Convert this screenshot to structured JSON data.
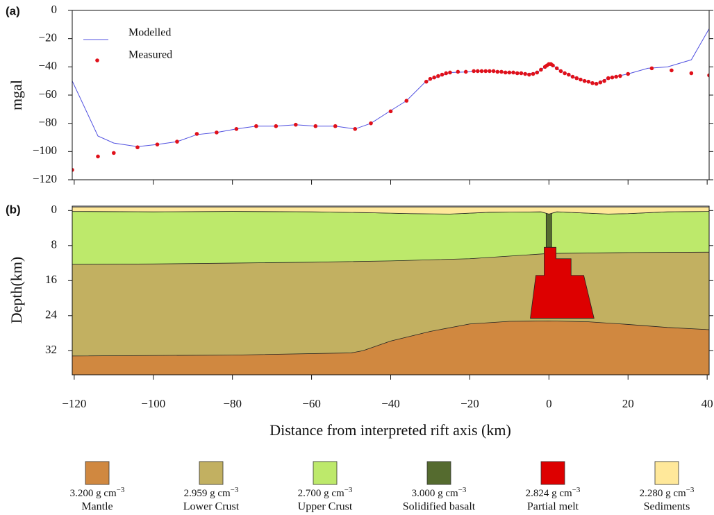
{
  "chart_data": [
    {
      "type": "line",
      "panel_label": "(a)",
      "y_label": "mgal",
      "xlim": [
        -120.5,
        40.5
      ],
      "ylim": [
        -120,
        0
      ],
      "yticks": [
        {
          "value": -120,
          "label": "−120"
        },
        {
          "value": -100,
          "label": "−100"
        },
        {
          "value": -80,
          "label": "−80"
        },
        {
          "value": -60,
          "label": "−60"
        },
        {
          "value": -40,
          "label": "−40"
        },
        {
          "value": -20,
          "label": "−20"
        },
        0
      ],
      "xticks": [
        -120,
        -100,
        -80,
        -60,
        -40,
        -20,
        0,
        20,
        40
      ],
      "series": [
        {
          "name": "Modelled",
          "kind": "line",
          "color": "#5050e0",
          "x": [
            -120.5,
            -114,
            -110,
            -104,
            -99,
            -94,
            -89,
            -84,
            -79,
            -74,
            -69,
            -64,
            -59,
            -54,
            -49,
            -45,
            -40,
            -36,
            -31,
            -28,
            -25,
            -20,
            -15,
            -10,
            -6,
            -3,
            -1,
            0,
            1,
            3,
            6,
            9,
            12,
            15,
            20,
            25,
            30,
            36,
            40.5
          ],
          "values": [
            -50,
            -89,
            -94,
            -96.5,
            -95,
            -93,
            -88,
            -86.5,
            -84,
            -82,
            -82,
            -81,
            -82,
            -82,
            -84,
            -80,
            -71,
            -64,
            -50,
            -47,
            -44,
            -43.5,
            -43,
            -44,
            -45,
            -44,
            -40,
            -38,
            -39,
            -43,
            -47,
            -50,
            -52,
            -48,
            -45,
            -41,
            -40,
            -35,
            -13
          ]
        },
        {
          "name": "Measured",
          "kind": "scatter",
          "color": "#e0101a",
          "x": [
            -120.5,
            -114,
            -110,
            -104,
            -99,
            -94,
            -89,
            -84,
            -79,
            -74,
            -69,
            -64,
            -59,
            -54,
            -49,
            -45,
            -40,
            -36,
            -31,
            -30,
            -29,
            -28,
            -27,
            -26,
            -25,
            -23,
            -21,
            -19,
            -18,
            -17,
            -16,
            -15,
            -14,
            -13,
            -12,
            -11,
            -10,
            -9,
            -8,
            -7,
            -6,
            -5,
            -4,
            -3,
            -2,
            -1,
            -0.5,
            0,
            0.5,
            1,
            2,
            3,
            4,
            5,
            6,
            7,
            8,
            9,
            10,
            11,
            12,
            13,
            14,
            15,
            16,
            17,
            18,
            20,
            26,
            31,
            36,
            40.5
          ],
          "values": [
            -113,
            -103.5,
            -101,
            -97,
            -95,
            -93,
            -87.5,
            -86.5,
            -84,
            -82,
            -82,
            -81,
            -82,
            -82,
            -84,
            -80,
            -71.5,
            -64,
            -50.5,
            -48.5,
            -47.5,
            -46.5,
            -45.5,
            -44.5,
            -44,
            -43.5,
            -43.5,
            -43,
            -43,
            -43,
            -43,
            -43,
            -43,
            -43.5,
            -43.5,
            -44,
            -44,
            -44,
            -44.5,
            -44.5,
            -45,
            -45.5,
            -45,
            -44,
            -42,
            -40,
            -39,
            -38,
            -38,
            -39,
            -41,
            -43,
            -44.5,
            -45.5,
            -47,
            -48,
            -49,
            -50,
            -50.5,
            -51.5,
            -52,
            -51,
            -50,
            -48,
            -47.5,
            -47,
            -46.5,
            -45,
            -41,
            -42.5,
            -44.5,
            -46
          ]
        }
      ]
    },
    {
      "type": "section",
      "panel_label": "(b)",
      "y_label": "Depth(km)",
      "x_label": "Distance from interpreted rift axis (km)",
      "xlim": [
        -120.5,
        40.5
      ],
      "ylim": [
        -1,
        37.5
      ],
      "y_inverted": true,
      "yticks": [
        0,
        8,
        16,
        24,
        32
      ],
      "xticks": [
        {
          "value": -120,
          "label": "−120"
        },
        {
          "value": -100,
          "label": "−100"
        },
        {
          "value": -80,
          "label": "−80"
        },
        {
          "value": -60,
          "label": "−60"
        },
        {
          "value": -40,
          "label": "−40"
        },
        {
          "value": -20,
          "label": "−20"
        },
        0,
        20,
        40
      ],
      "density_unit": "g cm",
      "density_exponent": "−3",
      "series": [
        {
          "name": "Mantle",
          "kind": "layer",
          "color": "#d08840",
          "density": 3.2,
          "density_label": "3.200",
          "x": [
            -120.5,
            -80,
            -50,
            -47,
            -40,
            -30,
            -20,
            -10,
            0,
            10,
            20,
            30,
            40.5
          ],
          "values": [
            33.2,
            33,
            32.5,
            32,
            29.8,
            27.6,
            25.9,
            25.3,
            25.2,
            25.4,
            26,
            26.7,
            27.2
          ]
        },
        {
          "name": "Lower Crust",
          "kind": "layer",
          "color": "#c2b061",
          "density": 2.959,
          "density_label": "2.959",
          "x": [
            -120.5,
            -100,
            -80,
            -60,
            -40,
            -20,
            0,
            20,
            40.5
          ],
          "values": [
            12.3,
            12.2,
            12,
            11.8,
            11.5,
            11,
            9.8,
            9.6,
            9.5
          ]
        },
        {
          "name": "Upper Crust",
          "kind": "layer",
          "color": "#bde96b",
          "density": 2.7,
          "density_label": "2.700",
          "x": [
            -120.5,
            -100,
            -80,
            -60,
            -45,
            -35,
            -25,
            -15,
            -2,
            0,
            2,
            10,
            15,
            20,
            30,
            40.5
          ],
          "values": [
            0.2,
            0.3,
            0.2,
            0.3,
            0.5,
            0.7,
            0.8,
            0.4,
            0.3,
            0.8,
            0.3,
            0.6,
            0.8,
            0.7,
            0.3,
            0.2
          ]
        },
        {
          "name": "Solidified basalt",
          "kind": "body",
          "color": "#556b2f",
          "density": 3.0,
          "density_label": "3.000",
          "x": [
            -0.7,
            0.7,
            0.7,
            -0.7
          ],
          "values": [
            0.3,
            0.3,
            8.4,
            8.4
          ]
        },
        {
          "name": "Partial melt",
          "kind": "body",
          "color": "#dd0000",
          "density": 2.824,
          "density_label": "2.824",
          "x": [
            -4.7,
            -3.3,
            -1.2,
            -1.2,
            1.8,
            1.8,
            5.6,
            5.6,
            8.8,
            11.4
          ],
          "values": [
            24.6,
            14.8,
            14.8,
            8.4,
            8.4,
            11,
            11,
            14.8,
            14.8,
            24.6
          ]
        },
        {
          "name": "Sediments",
          "kind": "body",
          "color": "#ffe89a",
          "density": 2.28,
          "density_label": "2.280",
          "x": [
            -120.5,
            40.5,
            40.5,
            30,
            20,
            15,
            10,
            2,
            0,
            -2,
            -15,
            -25,
            -35,
            -45,
            -60,
            -80,
            -100,
            -120.5
          ],
          "values": [
            -0.8,
            -0.8,
            0.2,
            0.3,
            0.7,
            0.8,
            0.6,
            0.3,
            0.8,
            0.3,
            0.4,
            0.8,
            0.7,
            0.5,
            0.3,
            0.2,
            0.3,
            0.2
          ]
        }
      ]
    }
  ]
}
